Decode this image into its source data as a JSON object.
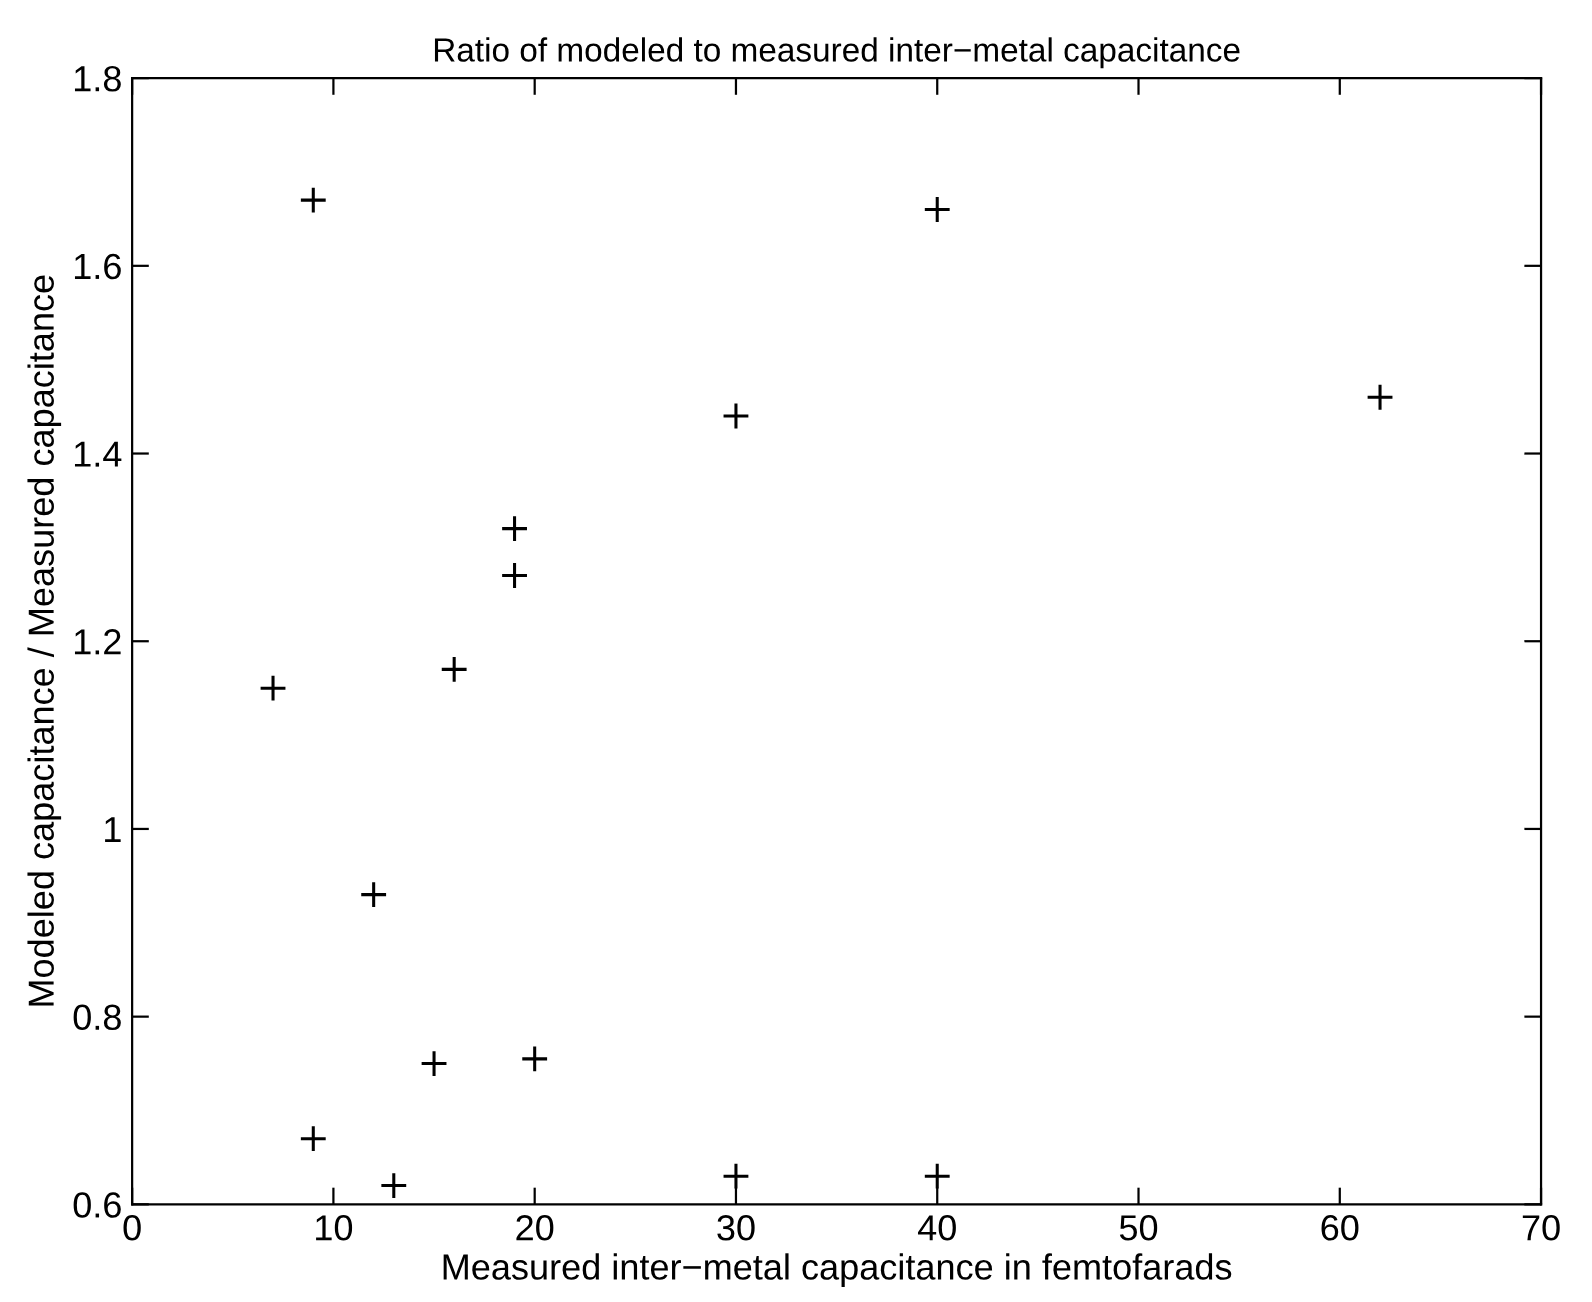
{
  "chart_data": {
    "type": "scatter",
    "title": "Ratio of modeled to measured inter−metal capacitance",
    "xlabel": "Measured inter−metal capacitance in femtofarads",
    "ylabel": "Modeled capacitance / Measured capacitance",
    "x": [
      9,
      19,
      19,
      30,
      40,
      62,
      7,
      16,
      12,
      15,
      20,
      9,
      13,
      30,
      40
    ],
    "series": [
      {
        "color": "#000000",
        "values": [
          1.67,
          1.32,
          1.27,
          1.44,
          1.66,
          1.46,
          1.15,
          1.17,
          0.93,
          0.75,
          0.755,
          0.67,
          0.62,
          0.63,
          0.63
        ]
      }
    ],
    "marker": "cross",
    "grid": false,
    "legend": false,
    "xlim": [
      0,
      70
    ],
    "xticks": [
      0,
      10,
      20,
      30,
      40,
      50,
      60,
      70
    ],
    "ylim": [
      0.6,
      1.8
    ],
    "yticks": [
      0.6,
      0.8,
      1,
      1.2,
      1.4,
      1.6,
      1.8
    ]
  }
}
